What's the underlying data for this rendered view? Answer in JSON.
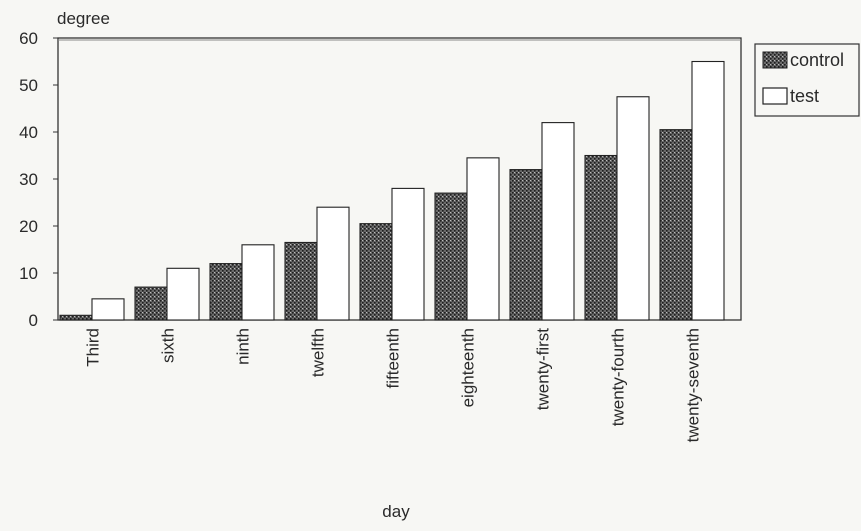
{
  "chart_data": {
    "type": "bar",
    "title": "",
    "xlabel": "day",
    "ylabel": "degree",
    "ylim": [
      0,
      60
    ],
    "yticks": [
      0,
      10,
      20,
      30,
      40,
      50,
      60
    ],
    "grid": false,
    "legend_position": "right",
    "categories": [
      "Third",
      "sixth",
      "ninth",
      "twelfth",
      "fifteenth",
      "eighteenth",
      "twenty-first",
      "twenty-fourth",
      "twenty-seventh"
    ],
    "series": [
      {
        "name": "control",
        "values": [
          1,
          7,
          12,
          16.5,
          20.5,
          27,
          32,
          35,
          40.5
        ],
        "color": "#555555",
        "pattern": "dotted-dark"
      },
      {
        "name": "test",
        "values": [
          4.5,
          11,
          16,
          24,
          28,
          34.5,
          42,
          47.5,
          55
        ],
        "color": "#ffffff",
        "pattern": "none"
      }
    ]
  }
}
